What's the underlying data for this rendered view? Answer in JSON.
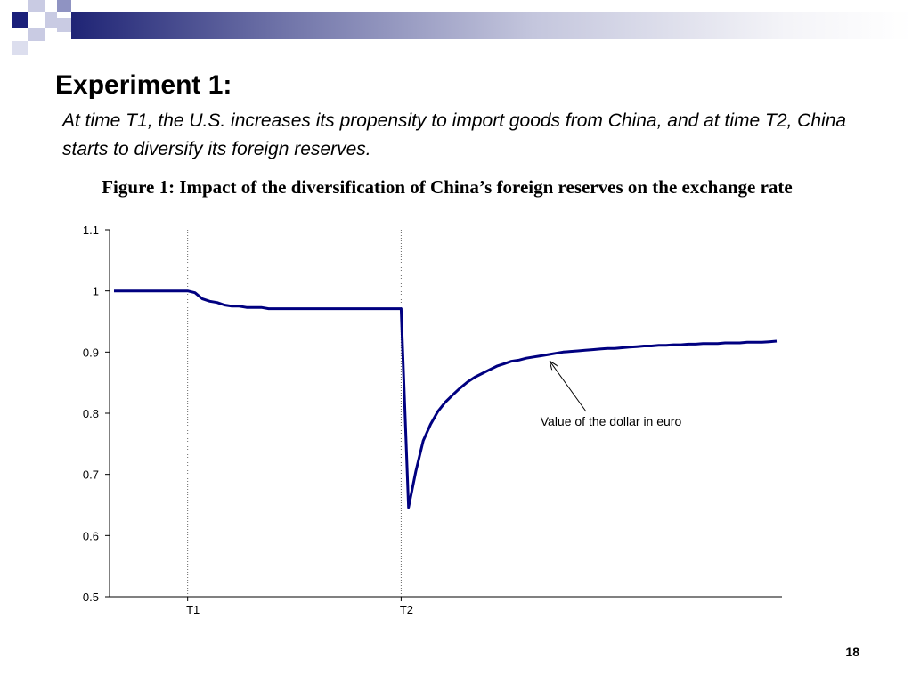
{
  "slide": {
    "heading": "Experiment 1:",
    "subtitle": "At time T1, the U.S. increases its propensity to import goods from China, and at time T2, China starts to diversify its foreign reserves.",
    "figure_title": "Figure 1: Impact of the diversification of China’s foreign reserves on the exchange rate",
    "page_number": "18"
  },
  "colors": {
    "series": "#000080",
    "title_bar_dark": "#1f2475",
    "accent_square": "#1a1f7a"
  },
  "chart_data": {
    "type": "line",
    "title": "",
    "xlabel": "",
    "ylabel": "",
    "ylim": [
      0.5,
      1.1
    ],
    "yticks": [
      0.5,
      0.6,
      0.7,
      0.8,
      0.9,
      1.0,
      1.1
    ],
    "ytick_labels": [
      "0.5",
      "0.6",
      "0.7",
      "0.8",
      "0.9",
      "1",
      "1.1"
    ],
    "xlim": [
      0,
      90
    ],
    "xticks": [
      {
        "x": 10,
        "label": "T1"
      },
      {
        "x": 39,
        "label": "T2"
      }
    ],
    "grid": false,
    "series": [
      {
        "name": "Value of the dollar in euro",
        "x": [
          0,
          1,
          2,
          3,
          4,
          5,
          6,
          7,
          8,
          9,
          10,
          11,
          12,
          13,
          14,
          15,
          16,
          17,
          18,
          19,
          20,
          21,
          22,
          23,
          24,
          25,
          26,
          27,
          28,
          29,
          30,
          31,
          32,
          33,
          34,
          35,
          36,
          37,
          38,
          39,
          40,
          41,
          42,
          43,
          44,
          45,
          46,
          47,
          48,
          49,
          50,
          51,
          52,
          53,
          54,
          55,
          56,
          57,
          58,
          59,
          60,
          61,
          62,
          63,
          64,
          65,
          66,
          67,
          68,
          69,
          70,
          71,
          72,
          73,
          74,
          75,
          76,
          77,
          78,
          79,
          80,
          81,
          82,
          83,
          84,
          85,
          86,
          87,
          88,
          89,
          90
        ],
        "y": [
          1.0,
          1.0,
          1.0,
          1.0,
          1.0,
          1.0,
          1.0,
          1.0,
          1.0,
          1.0,
          1.0,
          0.997,
          0.987,
          0.983,
          0.981,
          0.977,
          0.975,
          0.975,
          0.973,
          0.973,
          0.973,
          0.971,
          0.971,
          0.971,
          0.971,
          0.971,
          0.971,
          0.971,
          0.971,
          0.971,
          0.971,
          0.971,
          0.971,
          0.971,
          0.971,
          0.971,
          0.971,
          0.971,
          0.971,
          0.971,
          0.646,
          0.705,
          0.755,
          0.782,
          0.803,
          0.818,
          0.83,
          0.841,
          0.851,
          0.859,
          0.865,
          0.871,
          0.877,
          0.881,
          0.885,
          0.887,
          0.89,
          0.892,
          0.894,
          0.896,
          0.898,
          0.9,
          0.901,
          0.902,
          0.903,
          0.904,
          0.905,
          0.906,
          0.906,
          0.907,
          0.908,
          0.909,
          0.91,
          0.91,
          0.911,
          0.911,
          0.912,
          0.912,
          0.913,
          0.913,
          0.914,
          0.914,
          0.914,
          0.915,
          0.915,
          0.915,
          0.916,
          0.916,
          0.916,
          0.917,
          0.918
        ]
      }
    ],
    "annotations": [
      {
        "text": "Value of the dollar in euro",
        "points_to_x": 59
      }
    ]
  }
}
